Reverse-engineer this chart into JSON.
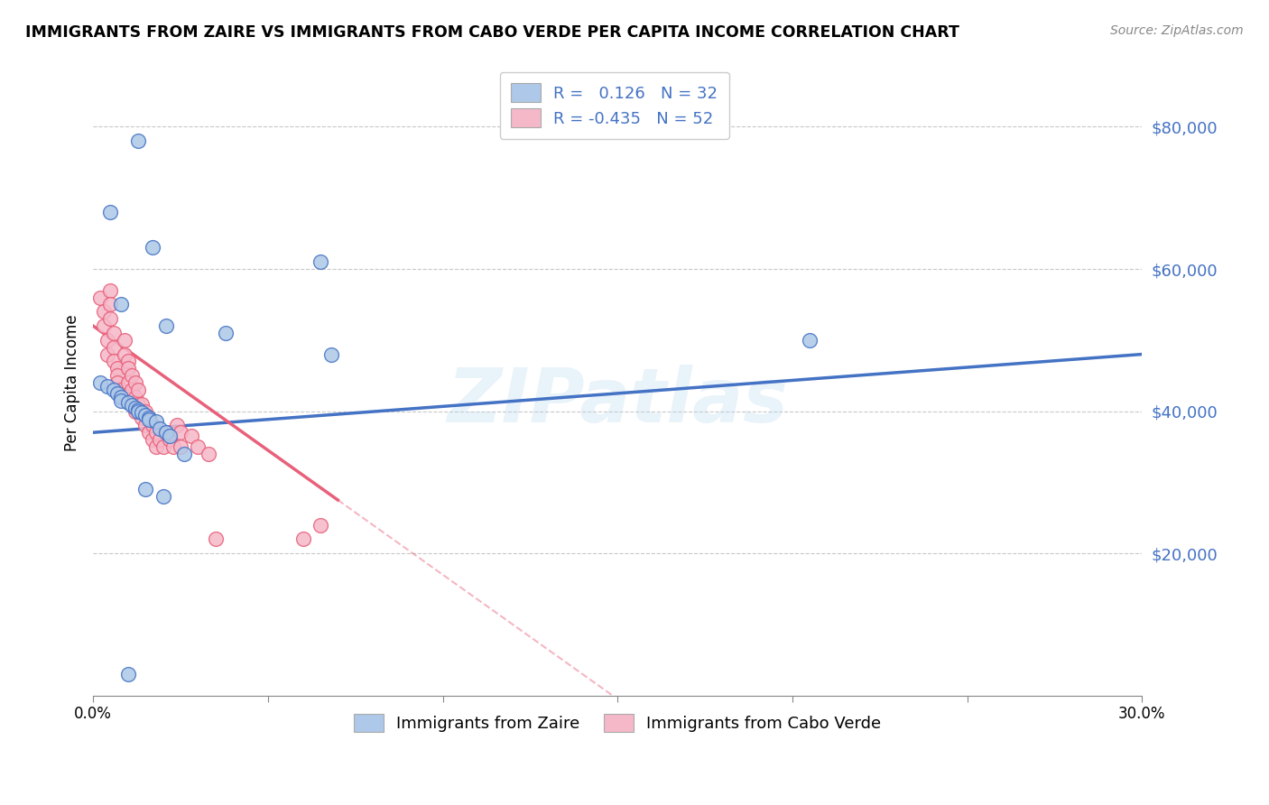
{
  "title": "IMMIGRANTS FROM ZAIRE VS IMMIGRANTS FROM CABO VERDE PER CAPITA INCOME CORRELATION CHART",
  "source": "Source: ZipAtlas.com",
  "ylabel": "Per Capita Income",
  "yticks": [
    0,
    20000,
    40000,
    60000,
    80000
  ],
  "ytick_labels": [
    "",
    "$20,000",
    "$40,000",
    "$60,000",
    "$80,000"
  ],
  "xlim": [
    0.0,
    0.3
  ],
  "ylim": [
    0,
    88000
  ],
  "watermark": "ZIPatlas",
  "color_zaire": "#adc8e8",
  "color_cabo": "#f5b8c8",
  "color_zaire_line": "#4472c4",
  "color_cabo_line": "#e8607a",
  "color_text_blue": "#4472c4",
  "background_color": "#ffffff",
  "grid_color": "#c8c8c8",
  "zaire_r": 0.126,
  "zaire_n": 32,
  "cabo_r": -0.435,
  "cabo_n": 52,
  "zaire_points_x": [
    0.013,
    0.005,
    0.017,
    0.065,
    0.008,
    0.021,
    0.038,
    0.002,
    0.004,
    0.006,
    0.007,
    0.008,
    0.008,
    0.01,
    0.011,
    0.012,
    0.013,
    0.013,
    0.014,
    0.015,
    0.016,
    0.016,
    0.018,
    0.019,
    0.021,
    0.022,
    0.026,
    0.068,
    0.015,
    0.02,
    0.205,
    0.01
  ],
  "zaire_points_y": [
    78000,
    68000,
    63000,
    61000,
    55000,
    52000,
    51000,
    44000,
    43500,
    43000,
    42500,
    42000,
    41500,
    41200,
    40800,
    40500,
    40200,
    40000,
    39800,
    39500,
    39000,
    38800,
    38500,
    37500,
    37000,
    36500,
    34000,
    48000,
    29000,
    28000,
    50000,
    3000
  ],
  "cabo_points_x": [
    0.002,
    0.003,
    0.003,
    0.004,
    0.004,
    0.005,
    0.005,
    0.005,
    0.006,
    0.006,
    0.006,
    0.007,
    0.007,
    0.007,
    0.008,
    0.008,
    0.009,
    0.009,
    0.01,
    0.01,
    0.01,
    0.011,
    0.011,
    0.012,
    0.012,
    0.012,
    0.013,
    0.013,
    0.014,
    0.014,
    0.015,
    0.015,
    0.016,
    0.016,
    0.017,
    0.017,
    0.018,
    0.018,
    0.019,
    0.02,
    0.021,
    0.022,
    0.023,
    0.024,
    0.025,
    0.025,
    0.028,
    0.03,
    0.033,
    0.035,
    0.06,
    0.065
  ],
  "cabo_points_y": [
    56000,
    54000,
    52000,
    50000,
    48000,
    57000,
    55000,
    53000,
    51000,
    49000,
    47000,
    46000,
    45000,
    44000,
    43000,
    42000,
    50000,
    48000,
    47000,
    46000,
    44000,
    45000,
    43000,
    44000,
    42000,
    40000,
    43000,
    41000,
    41000,
    39000,
    40000,
    38000,
    39000,
    37000,
    38000,
    36000,
    37000,
    35000,
    36000,
    35000,
    37000,
    36000,
    35000,
    38000,
    37000,
    35000,
    36500,
    35000,
    34000,
    22000,
    22000,
    24000
  ]
}
